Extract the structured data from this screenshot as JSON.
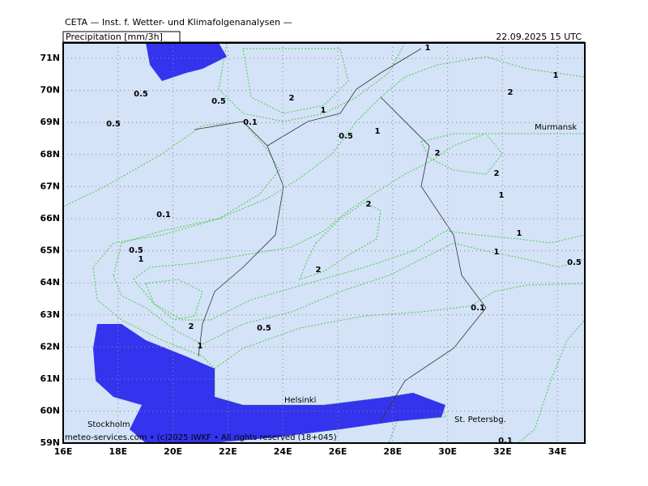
{
  "header": {
    "title": "CETA — Inst. f. Wetter- und Klimafolgenanalysen —",
    "field": "Precipitation [mm/3h]",
    "valid": "22.09.2025 15 UTC"
  },
  "lat_labels": [
    "71N",
    "70N",
    "69N",
    "68N",
    "67N",
    "66N",
    "65N",
    "64N",
    "63N",
    "62N",
    "61N",
    "60N",
    "59N"
  ],
  "lon_labels": [
    "16E",
    "18E",
    "20E",
    "22E",
    "24E",
    "26E",
    "28E",
    "30E",
    "32E",
    "34E"
  ],
  "places": [
    "Murmansk",
    "Helsinki",
    "Stockholm",
    "St. Petersbg."
  ],
  "contour_labels": [
    "1",
    "1",
    "0.5",
    "0.5",
    "2",
    "1",
    "2",
    "0.5",
    "0.1",
    "0.5",
    "1",
    "2",
    "2",
    "1",
    "2",
    "0.1",
    "1",
    "0.5",
    "1",
    "1",
    "0.5",
    "2",
    "0.1",
    "2",
    "0.5",
    "1",
    "0.1"
  ],
  "footer": "meteo-services.com • (c)2025 IWKF • All rights reserved (18+045)"
}
